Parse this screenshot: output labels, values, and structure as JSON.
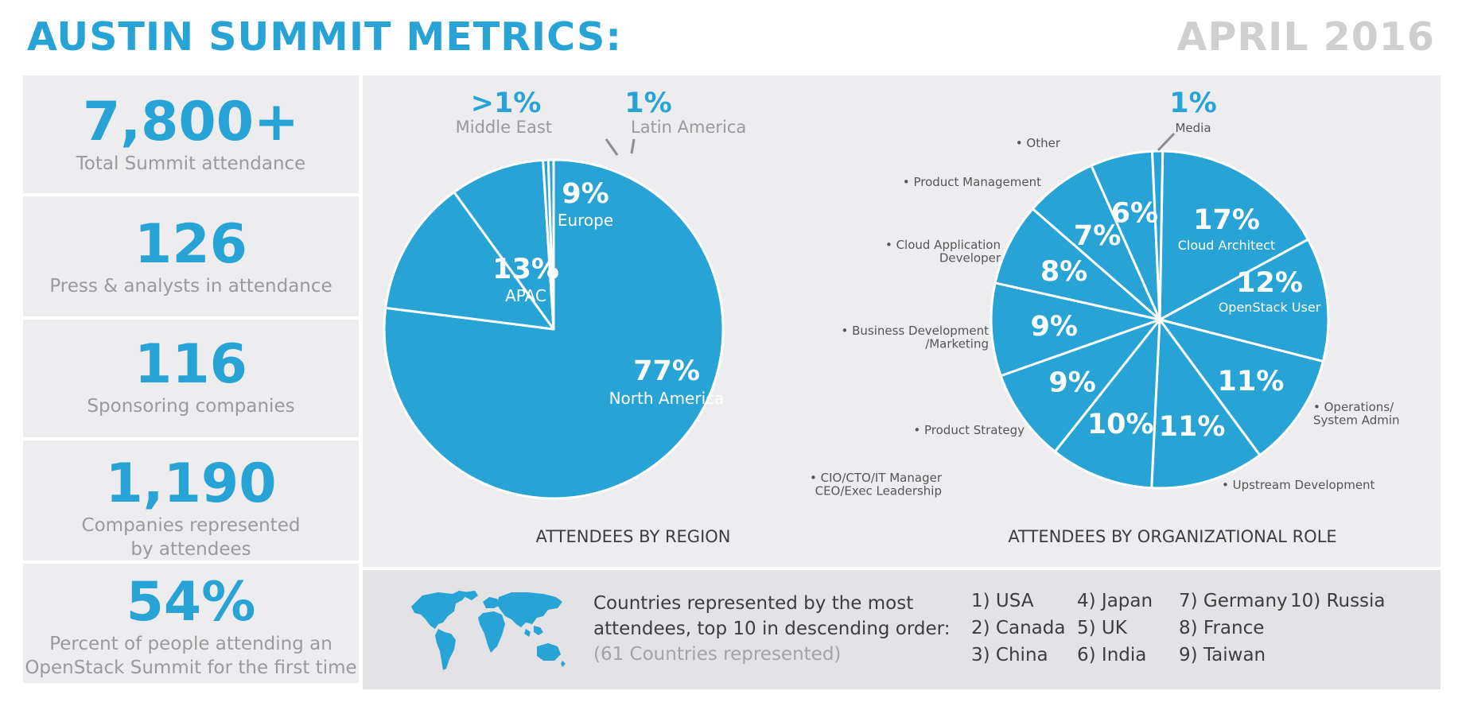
{
  "header": {
    "title": "AUSTIN SUMMIT METRICS:",
    "date": "APRIL 2016"
  },
  "stats": [
    {
      "value": "7,800+",
      "label": "Total Summit attendance"
    },
    {
      "value": "126",
      "label": "Press & analysts in attendance"
    },
    {
      "value": "116",
      "label": "Sponsoring companies"
    },
    {
      "value": "1,190",
      "label": "Companies represented\nby attendees"
    },
    {
      "value": "54%",
      "label": "Percent of people attending an\nOpenStack Summit for the first time"
    }
  ],
  "colors": {
    "accent": "#27a3d6",
    "panel": "#ededef",
    "muted": "#9a9a9c",
    "date": "#cfcfd1"
  },
  "chart_data": [
    {
      "type": "pie",
      "title": "ATTENDEES BY REGION",
      "slices": [
        {
          "label": "North America",
          "display": "77%",
          "value": 77
        },
        {
          "label": "APAC",
          "display": "13%",
          "value": 13
        },
        {
          "label": "Europe",
          "display": "9%",
          "value": 9
        },
        {
          "label": "Middle East",
          "display": ">1%",
          "value": 0.5
        },
        {
          "label": "Latin America",
          "display": "1%",
          "value": 0.5
        }
      ]
    },
    {
      "type": "pie",
      "title": "ATTENDEES BY ORGANIZATIONAL ROLE",
      "slices": [
        {
          "label": "Cloud Architect",
          "display": "17%",
          "value": 17
        },
        {
          "label": "OpenStack User",
          "display": "12%",
          "value": 12
        },
        {
          "label": "• Operations/\nSystem Admin",
          "display": "11%",
          "value": 11
        },
        {
          "label": "• Upstream Development",
          "display": "11%",
          "value": 11
        },
        {
          "label": "• CIO/CTO/IT Manager\nCEO/Exec Leadership",
          "display": "10%",
          "value": 10
        },
        {
          "label": "• Product Strategy",
          "display": "9%",
          "value": 9
        },
        {
          "label": "• Business Development\n/Marketing",
          "display": "9%",
          "value": 9
        },
        {
          "label": "• Cloud Application\nDeveloper",
          "display": "8%",
          "value": 8
        },
        {
          "label": "• Product Management",
          "display": "7%",
          "value": 7
        },
        {
          "label": "• Other",
          "display": "6%",
          "value": 6
        },
        {
          "label": "Media",
          "display": "1%",
          "value": 1
        }
      ]
    }
  ],
  "countries": {
    "heading": "Countries represented by the most attendees, top 10 in descending order:",
    "sub": "(61 Countries represented)",
    "list": [
      "1) USA",
      "2) Canada",
      "3) China",
      "4) Japan",
      "5) UK",
      "6) India",
      "7) Germany",
      "8) France",
      "9) Taiwan",
      "10)  Russia"
    ]
  }
}
